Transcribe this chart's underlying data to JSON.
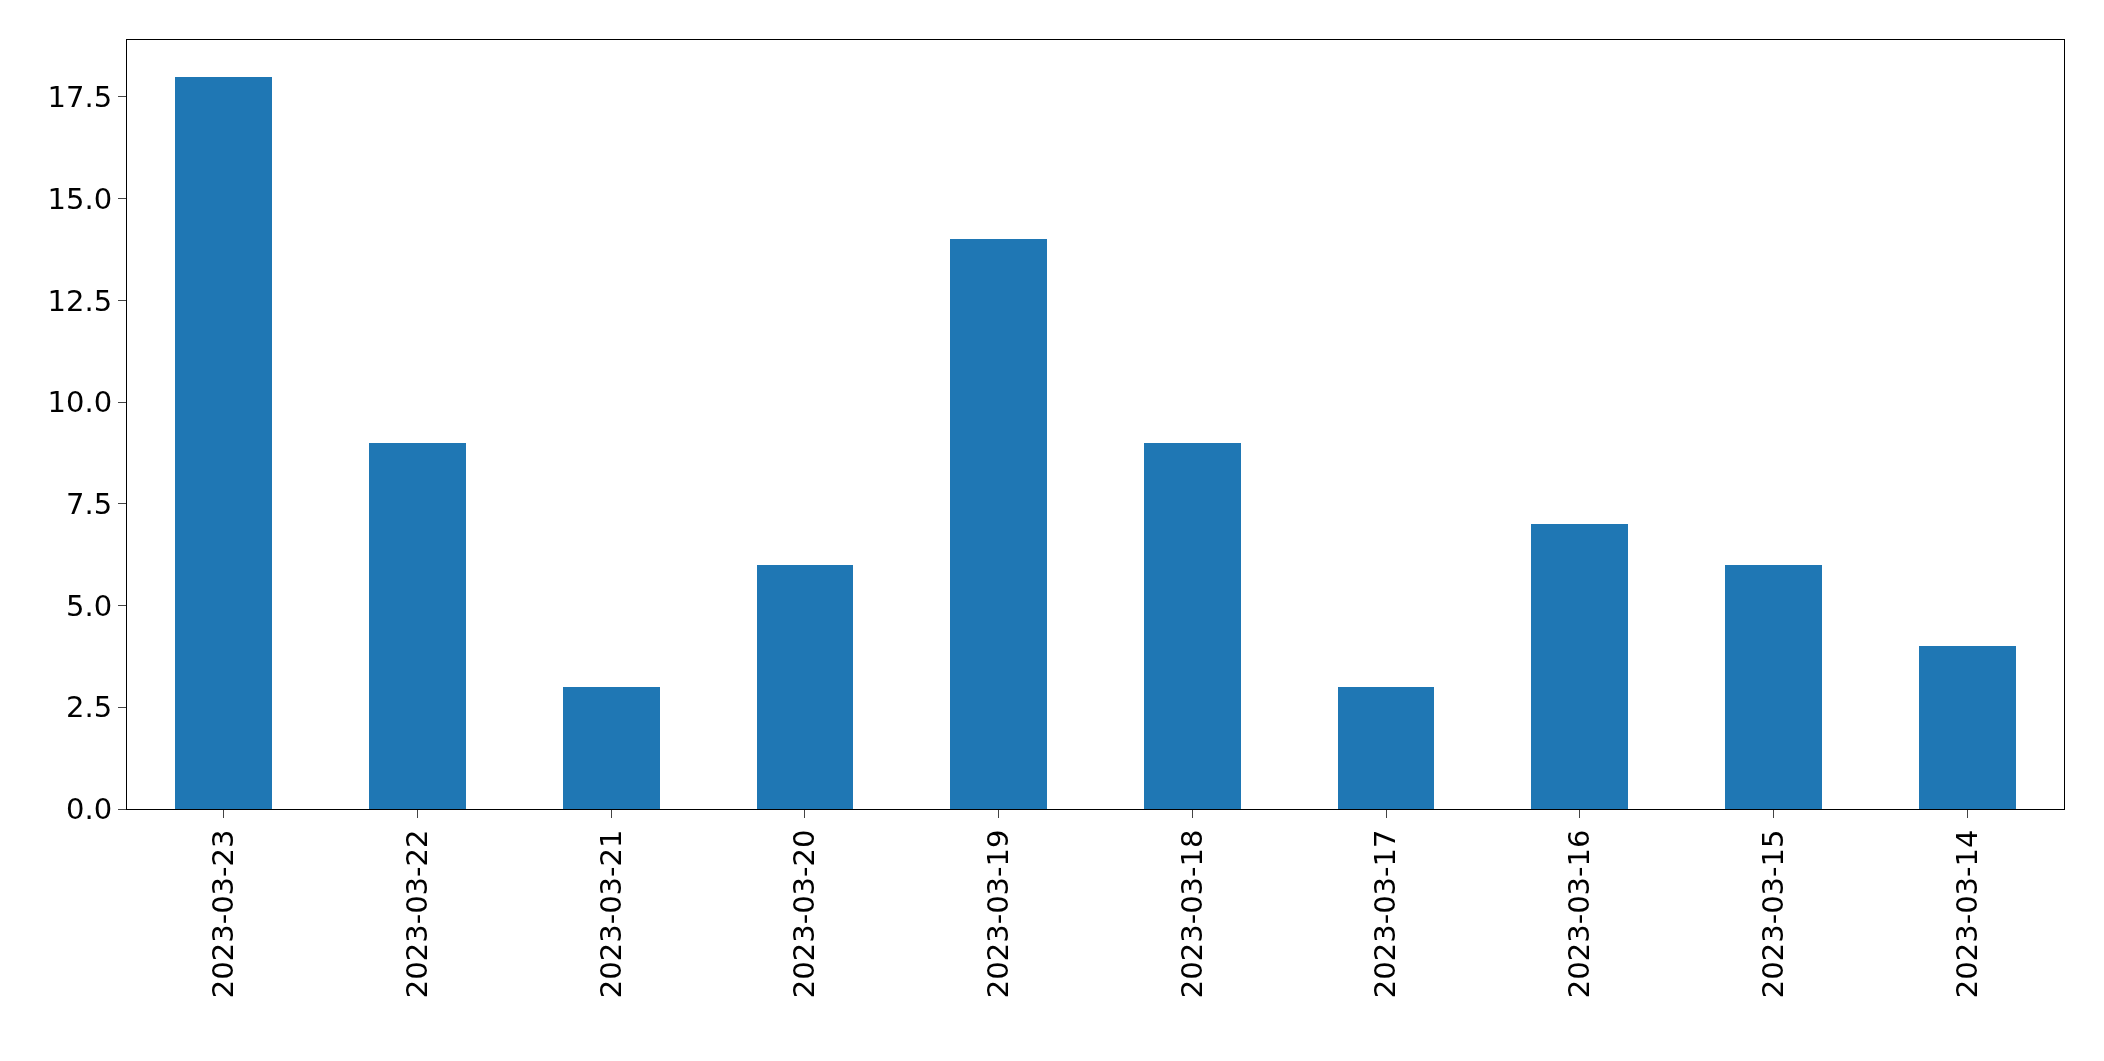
{
  "chart_data": {
    "type": "bar",
    "categories": [
      "2023-03-23",
      "2023-03-22",
      "2023-03-21",
      "2023-03-20",
      "2023-03-19",
      "2023-03-18",
      "2023-03-17",
      "2023-03-16",
      "2023-03-15",
      "2023-03-14"
    ],
    "values": [
      18,
      9,
      3,
      6,
      14,
      9,
      3,
      7,
      6,
      4
    ],
    "color": "#1f77b4",
    "ylim": [
      0,
      18.9
    ],
    "yticks": [
      {
        "value": 0,
        "label": "0.0"
      },
      {
        "value": 2.5,
        "label": "2.5"
      },
      {
        "value": 5,
        "label": "5.0"
      },
      {
        "value": 7.5,
        "label": "7.5"
      },
      {
        "value": 10,
        "label": "10.0"
      },
      {
        "value": 12.5,
        "label": "12.5"
      },
      {
        "value": 15,
        "label": "15.0"
      },
      {
        "value": 17.5,
        "label": "17.5"
      }
    ]
  }
}
